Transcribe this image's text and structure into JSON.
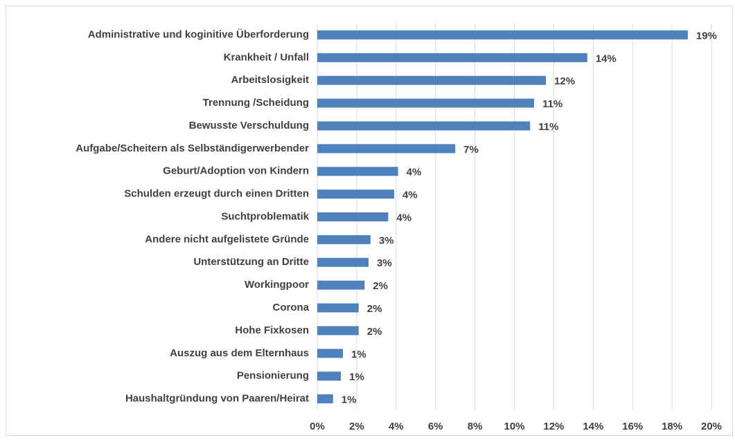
{
  "chart_data": {
    "type": "bar",
    "orientation": "horizontal",
    "categories": [
      "Administrative und koginitive Überforderung",
      "Krankheit / Unfall",
      "Arbeitslosigkeit",
      "Trennung /Scheidung",
      "Bewusste Verschuldung",
      "Aufgabe/Scheitern als Selbständigerwerbender",
      "Geburt/Adoption von Kindern",
      "Schulden erzeugt durch einen Dritten",
      "Suchtproblematik",
      "Andere nicht aufgelistete Gründe",
      "Unterstützung an Dritte",
      "Workingpoor",
      "Corona",
      "Hohe Fixkosen",
      "Auszug aus dem Elternhaus",
      "Pensionierung",
      "Haushaltgründung von Paaren/Heirat"
    ],
    "values": [
      18.8,
      13.7,
      11.6,
      11.0,
      10.8,
      7.0,
      4.1,
      3.9,
      3.6,
      2.7,
      2.6,
      2.4,
      2.1,
      2.1,
      1.3,
      1.2,
      0.8
    ],
    "value_labels": [
      "19%",
      "14%",
      "12%",
      "11%",
      "11%",
      "7%",
      "4%",
      "4%",
      "4%",
      "3%",
      "3%",
      "2%",
      "2%",
      "2%",
      "1%",
      "1%",
      "1%"
    ],
    "color": "#4f81bd",
    "xlim": [
      0,
      20
    ],
    "xticks": [
      {
        "value": 0,
        "label": "0%"
      },
      {
        "value": 2,
        "label": "2%"
      },
      {
        "value": 4,
        "label": "4%"
      },
      {
        "value": 6,
        "label": "6%"
      },
      {
        "value": 8,
        "label": "8%"
      },
      {
        "value": 10,
        "label": "10%"
      },
      {
        "value": 12,
        "label": "12%"
      },
      {
        "value": 14,
        "label": "14%"
      },
      {
        "value": 16,
        "label": "16%"
      },
      {
        "value": 18,
        "label": "18%"
      },
      {
        "value": 20,
        "label": "20%"
      }
    ],
    "grid": true
  }
}
